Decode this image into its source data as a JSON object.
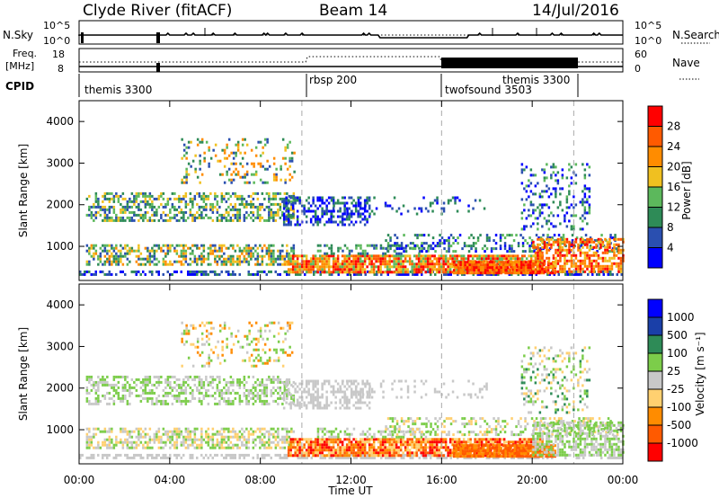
{
  "header": {
    "station": "Clyde River (fitACF)",
    "beam": "Beam 14",
    "date": "14/Jul/2016"
  },
  "colors": {
    "power_scale": [
      "#0000ff",
      "#2a4fb0",
      "#2e8b57",
      "#5cb85c",
      "#f0c020",
      "#ff8c00",
      "#ff5a00",
      "#ff0000"
    ],
    "velocity_scale": [
      "#ff0000",
      "#ff5a00",
      "#ff8c00",
      "#ffd070",
      "#c8c8c8",
      "#7ccd4a",
      "#2e8b57",
      "#1a3fa8",
      "#0000ff"
    ],
    "ground_scatter": "#c0c0c0"
  },
  "chart_data": [
    {
      "type": "line",
      "title": "N.Sky / N.Search",
      "left_label": "N.Sky",
      "left_ticks": [
        "10^5",
        "10^0"
      ],
      "right_label": "N.Search",
      "right_ticks": [
        "10^5",
        "10^0"
      ],
      "x": [
        "00:00",
        "04:00",
        "08:00",
        "12:00",
        "16:00",
        "20:00",
        "00:00"
      ],
      "series": [
        {
          "name": "N.Sky",
          "note": "solid, mostly near 10^4 with spikes"
        },
        {
          "name": "N.Search",
          "note": "dotted"
        }
      ]
    },
    {
      "type": "line",
      "title": "Freq. [MHz] / Nave",
      "left_label": "Freq.\n[MHz]",
      "left_ticks": [
        "18",
        "8"
      ],
      "right_label": "Nave",
      "right_ticks": [
        "60",
        "0"
      ],
      "series": [
        {
          "name": "Freq.",
          "note": "dotted, ~11 MHz"
        },
        {
          "name": "Nave",
          "note": "solid, high-frequency oscillation 16:00-21:00"
        }
      ]
    },
    {
      "type": "table",
      "title": "CPID",
      "label": "CPID",
      "segments": [
        {
          "name": "themis 3300",
          "start": "00:00",
          "end": "09:50"
        },
        {
          "name": "rbsp 200",
          "start": "09:50",
          "end": "16:00"
        },
        {
          "name": "twofsound 3503",
          "start": "16:00",
          "end": "21:50"
        },
        {
          "name": "themis 3300",
          "start": "20:00",
          "end": "21:50"
        }
      ]
    },
    {
      "type": "heatmap",
      "title": "Power",
      "xlabel": "",
      "ylabel": "Slant Range [km]",
      "ylim": [
        180,
        4500
      ],
      "yticks": [
        1000,
        2000,
        3000,
        4000
      ],
      "xlim": [
        "00:00",
        "24:00"
      ],
      "colorbar_label": "Power [dB]",
      "colorbar_ticks": [
        4,
        8,
        12,
        16,
        20,
        24,
        28
      ],
      "dashed_boundaries": [
        "09:50",
        "16:00",
        "21:50"
      ]
    },
    {
      "type": "heatmap",
      "title": "Velocity",
      "xlabel": "Time UT",
      "ylabel": "Slant Range [km]",
      "ylim": [
        180,
        4500
      ],
      "yticks": [
        1000,
        2000,
        3000,
        4000
      ],
      "xticks": [
        "00:00",
        "04:00",
        "08:00",
        "12:00",
        "16:00",
        "20:00",
        "00:00"
      ],
      "colorbar_label": "Velocity [m s⁻¹]",
      "colorbar_ticks": [
        1000,
        500,
        100,
        25,
        -25,
        -100,
        -500,
        -1000
      ],
      "dashed_boundaries": [
        "09:50",
        "16:00",
        "21:50"
      ]
    }
  ]
}
